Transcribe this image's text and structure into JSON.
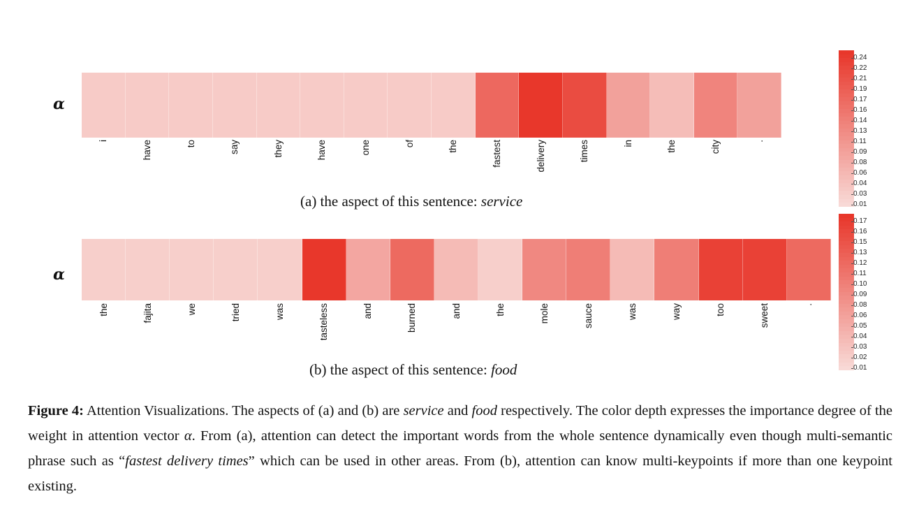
{
  "alpha_symbol": "α",
  "chart_data": [
    {
      "type": "heatmap",
      "row_label": "α",
      "tokens": [
        "i",
        "have",
        "to",
        "say",
        "they",
        "have",
        "one",
        "of",
        "the",
        "fastest",
        "delivery",
        "times",
        "in",
        "the",
        "city",
        "."
      ],
      "values": [
        0.03,
        0.03,
        0.03,
        0.03,
        0.03,
        0.03,
        0.03,
        0.03,
        0.03,
        0.17,
        0.24,
        0.21,
        0.09,
        0.05,
        0.13,
        0.09
      ],
      "vmin": 0.01,
      "vmax": 0.24,
      "colorbar_ticks": [
        "0.24",
        "0.22",
        "0.21",
        "0.19",
        "0.17",
        "0.16",
        "0.14",
        "0.13",
        "0.11",
        "0.09",
        "0.08",
        "0.06",
        "0.04",
        "0.03",
        "0.01"
      ],
      "caption_prefix": "(a) the aspect of this sentence: ",
      "caption_aspect": "service"
    },
    {
      "type": "heatmap",
      "row_label": "α",
      "tokens": [
        "the",
        "fajita",
        "we",
        "tried",
        "was",
        "tasteless",
        "and",
        "burned",
        "and",
        "the",
        "mole",
        "sauce",
        "was",
        "way",
        "too",
        "sweet",
        "."
      ],
      "values": [
        0.02,
        0.02,
        0.02,
        0.02,
        0.02,
        0.17,
        0.06,
        0.12,
        0.04,
        0.02,
        0.09,
        0.1,
        0.04,
        0.1,
        0.16,
        0.16,
        0.12
      ],
      "vmin": 0.01,
      "vmax": 0.17,
      "colorbar_ticks": [
        "0.17",
        "0.16",
        "0.15",
        "0.13",
        "0.12",
        "0.11",
        "0.10",
        "0.09",
        "0.08",
        "0.06",
        "0.05",
        "0.04",
        "0.03",
        "0.02",
        "0.01"
      ],
      "caption_prefix": "(b) the aspect of this sentence: ",
      "caption_aspect": "food"
    }
  ],
  "colors": {
    "low": "#f8d9d6",
    "high": "#e8372b"
  },
  "figure_caption": {
    "label": "Figure 4:",
    "text_1": " Attention Visualizations.  The aspects of (a) and (b) are ",
    "em_1": "service",
    "text_2": " and ",
    "em_2": "food",
    "text_3": " respectively.  The color depth expresses the importance degree of the weight in attention vector ",
    "em_3": "α",
    "text_4": ". From (a), attention can detect the important words from the whole sentence dynamically even though multi-semantic phrase such as “",
    "em_4": "fastest delivery times",
    "text_5": "” which can be used in other areas.  From (b), attention can know multi-keypoints if more than one keypoint existing."
  }
}
